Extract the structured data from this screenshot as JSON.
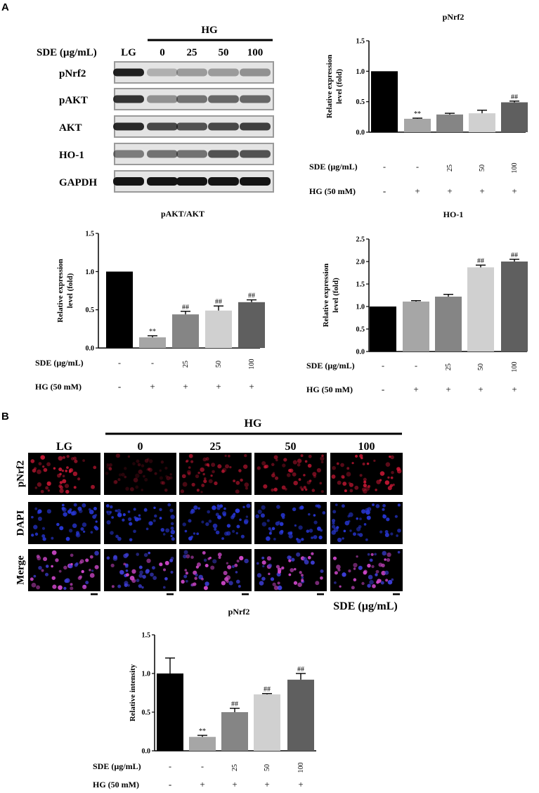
{
  "panel_labels": {
    "a": "A",
    "b": "B"
  },
  "western": {
    "hg_label": "HG",
    "sde_label": "SDE (µg/mL)",
    "lanes": [
      "LG",
      "0",
      "25",
      "50",
      "100"
    ],
    "rows": [
      "pNrf2",
      "pAKT",
      "AKT",
      "HO-1",
      "GAPDH"
    ]
  },
  "if_panel": {
    "hg_label": "HG",
    "columns": [
      "LG",
      "0",
      "25",
      "50",
      "100"
    ],
    "rows": [
      "pNrf2",
      "DAPI",
      "Merge"
    ],
    "sde_label": "SDE (µg/mL)"
  },
  "colors": {
    "bars": [
      "#000000",
      "#a6a6a6",
      "#858585",
      "#d0d0d0",
      "#5f5f5f"
    ],
    "pnrf2_stain": "#c81432",
    "dapi_stain": "#2030d0",
    "merge_stain": "#c040c0"
  },
  "chart_data": [
    {
      "type": "bar",
      "title": "pNrf2",
      "ylabel": "Relative expression level (fold)",
      "ylim": [
        0,
        1.5
      ],
      "yticks": [
        "0.0",
        "0.5",
        "1.0",
        "1.5"
      ],
      "categories": [
        "-",
        "-",
        "25",
        "50",
        "100"
      ],
      "values": [
        1.0,
        0.22,
        0.29,
        0.31,
        0.49
      ],
      "errors": [
        0,
        0.01,
        0.02,
        0.05,
        0.02
      ],
      "annotations": [
        "",
        "**",
        "",
        "",
        "##"
      ],
      "sde_label": "SDE (µg/mL)",
      "hg_label": "HG (50 mM)",
      "hg_values": [
        "-",
        "+",
        "+",
        "+",
        "+"
      ]
    },
    {
      "type": "bar",
      "title": "pAKT/AKT",
      "ylabel": "Relative expression level (fold)",
      "ylim": [
        0,
        1.5
      ],
      "yticks": [
        "0.0",
        "0.5",
        "1.0",
        "1.5"
      ],
      "categories": [
        "-",
        "-",
        "25",
        "50",
        "100"
      ],
      "values": [
        1.0,
        0.14,
        0.44,
        0.49,
        0.6
      ],
      "errors": [
        0,
        0.02,
        0.04,
        0.06,
        0.03
      ],
      "annotations": [
        "",
        "**",
        "##",
        "##",
        "##"
      ],
      "sde_label": "SDE (µg/mL)",
      "hg_label": "HG (50 mM)",
      "hg_values": [
        "-",
        "+",
        "+",
        "+",
        "+"
      ]
    },
    {
      "type": "bar",
      "title": "HO-1",
      "ylabel": "Relative expression level (fold)",
      "ylim": [
        0,
        2.5
      ],
      "yticks": [
        "0.0",
        "0.5",
        "1.0",
        "1.5",
        "2.0",
        "2.5"
      ],
      "categories": [
        "-",
        "-",
        "25",
        "50",
        "100"
      ],
      "values": [
        1.0,
        1.11,
        1.22,
        1.87,
        2.0
      ],
      "errors": [
        0,
        0.02,
        0.05,
        0.05,
        0.05
      ],
      "annotations": [
        "",
        "",
        "",
        "##",
        "##"
      ],
      "sde_label": "SDE (µg/mL)",
      "hg_label": "HG (50 mM)",
      "hg_values": [
        "-",
        "+",
        "+",
        "+",
        "+"
      ]
    },
    {
      "type": "bar",
      "title": "pNrf2",
      "ylabel": "Relative intensity",
      "ylim": [
        0,
        1.5
      ],
      "yticks": [
        "0.0",
        "0.5",
        "1.0",
        "1.5"
      ],
      "categories": [
        "-",
        "-",
        "25",
        "50",
        "100"
      ],
      "values": [
        1.0,
        0.18,
        0.5,
        0.73,
        0.92
      ],
      "errors": [
        0.2,
        0.02,
        0.05,
        0.01,
        0.08
      ],
      "annotations": [
        "",
        "**",
        "##",
        "##",
        "##"
      ],
      "sde_label": "SDE (µg/mL)",
      "hg_label": "HG (50 mM)",
      "hg_values": [
        "-",
        "+",
        "+",
        "+",
        "+"
      ]
    }
  ]
}
